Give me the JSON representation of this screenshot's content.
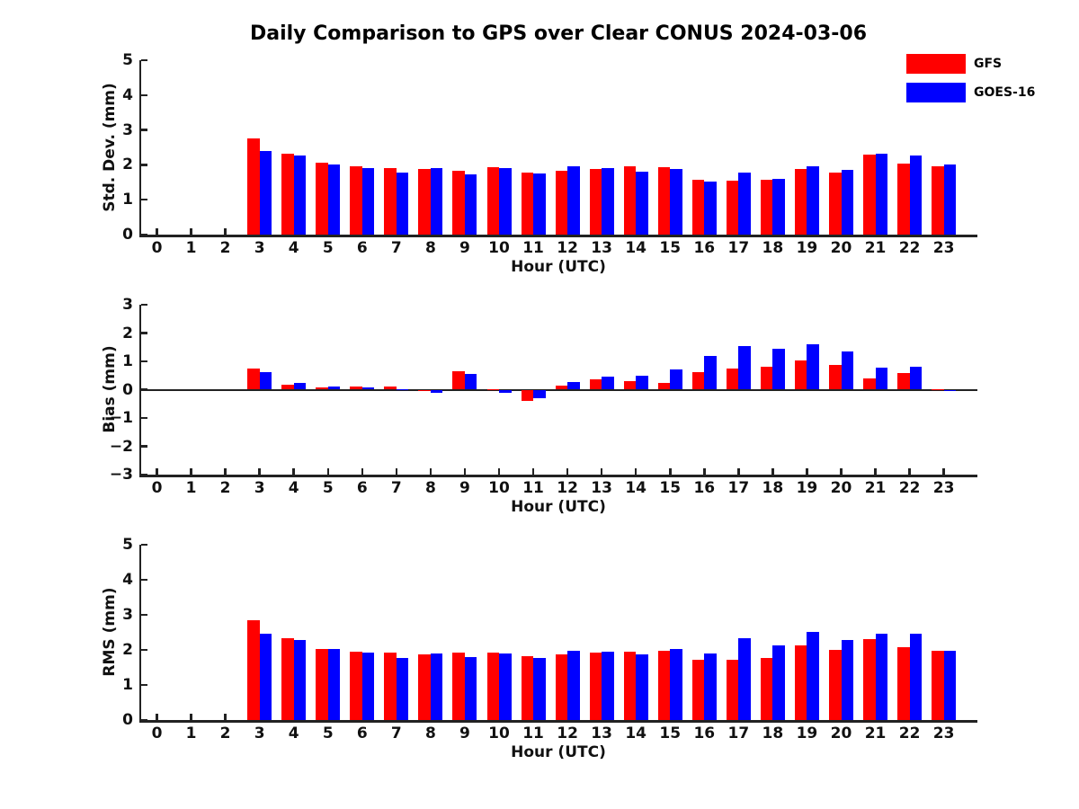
{
  "title": "Daily Comparison to GPS over Clear CONUS 2024-03-06",
  "legend": {
    "entries": [
      {
        "label": "GFS",
        "color": "#ff0000"
      },
      {
        "label": "GOES-16",
        "color": "#0000ff"
      }
    ]
  },
  "chart_data": [
    {
      "type": "bar",
      "title": "",
      "ylabel": "Std. Dev. (mm)",
      "xlabel": "Hour (UTC)",
      "ylim": [
        0,
        5
      ],
      "yticks": [
        0,
        1,
        2,
        3,
        4,
        5
      ],
      "grid": false,
      "legend_position": "upper right of figure",
      "categories": [
        0,
        1,
        2,
        3,
        4,
        5,
        6,
        7,
        8,
        9,
        10,
        11,
        12,
        13,
        14,
        15,
        16,
        17,
        18,
        19,
        20,
        21,
        22,
        23
      ],
      "series": [
        {
          "name": "GFS",
          "color": "#ff0000",
          "values": [
            0,
            0,
            0,
            2.75,
            2.32,
            2.05,
            1.95,
            1.91,
            1.88,
            1.83,
            1.93,
            1.79,
            1.84,
            1.87,
            1.95,
            1.93,
            1.58,
            1.54,
            1.58,
            1.87,
            1.79,
            2.29,
            2.03,
            1.97
          ]
        },
        {
          "name": "GOES-16",
          "color": "#0000ff",
          "values": [
            0,
            0,
            0,
            2.4,
            2.27,
            2.02,
            1.92,
            1.77,
            1.91,
            1.72,
            1.9,
            1.76,
            1.95,
            1.9,
            1.81,
            1.87,
            1.51,
            1.77,
            1.61,
            1.95,
            1.86,
            2.33,
            2.28,
            2.0
          ]
        }
      ]
    },
    {
      "type": "bar",
      "title": "",
      "ylabel": "Bias (mm)",
      "xlabel": "Hour (UTC)",
      "ylim": [
        -3,
        3
      ],
      "yticks": [
        -3,
        -2,
        -1,
        0,
        1,
        2,
        3
      ],
      "zero_line": true,
      "grid": false,
      "categories": [
        0,
        1,
        2,
        3,
        4,
        5,
        6,
        7,
        8,
        9,
        10,
        11,
        12,
        13,
        14,
        15,
        16,
        17,
        18,
        19,
        20,
        21,
        22,
        23
      ],
      "series": [
        {
          "name": "GFS",
          "color": "#ff0000",
          "values": [
            0,
            0,
            0,
            0.76,
            0.16,
            0.09,
            0.12,
            0.12,
            -0.04,
            0.65,
            0.01,
            -0.4,
            0.15,
            0.36,
            0.3,
            0.24,
            0.61,
            0.76,
            0.82,
            1.03,
            0.86,
            0.4,
            0.59,
            0.01
          ]
        },
        {
          "name": "GOES-16",
          "color": "#0000ff",
          "values": [
            0,
            0,
            0,
            0.61,
            0.23,
            0.1,
            0.09,
            0.02,
            -0.12,
            0.55,
            -0.11,
            -0.3,
            0.28,
            0.47,
            0.49,
            0.72,
            1.19,
            1.54,
            1.44,
            1.6,
            1.35,
            0.77,
            0.81,
            -0.03
          ]
        }
      ]
    },
    {
      "type": "bar",
      "title": "",
      "ylabel": "RMS (mm)",
      "xlabel": "Hour (UTC)",
      "ylim": [
        0,
        5
      ],
      "yticks": [
        0,
        1,
        2,
        3,
        4,
        5
      ],
      "grid": false,
      "categories": [
        0,
        1,
        2,
        3,
        4,
        5,
        6,
        7,
        8,
        9,
        10,
        11,
        12,
        13,
        14,
        15,
        16,
        17,
        18,
        19,
        20,
        21,
        22,
        23
      ],
      "series": [
        {
          "name": "GFS",
          "color": "#ff0000",
          "values": [
            0,
            0,
            0,
            2.85,
            2.34,
            2.03,
            1.95,
            1.93,
            1.88,
            1.93,
            1.93,
            1.83,
            1.86,
            1.93,
            1.96,
            1.97,
            1.71,
            1.73,
            1.78,
            2.13,
            1.99,
            2.31,
            2.08,
            1.98
          ]
        },
        {
          "name": "GOES-16",
          "color": "#0000ff",
          "values": [
            0,
            0,
            0,
            2.47,
            2.29,
            2.03,
            1.92,
            1.78,
            1.9,
            1.8,
            1.9,
            1.78,
            1.98,
            1.95,
            1.88,
            2.02,
            1.89,
            2.33,
            2.13,
            2.51,
            2.28,
            2.45,
            2.45,
            1.97
          ]
        }
      ]
    }
  ]
}
